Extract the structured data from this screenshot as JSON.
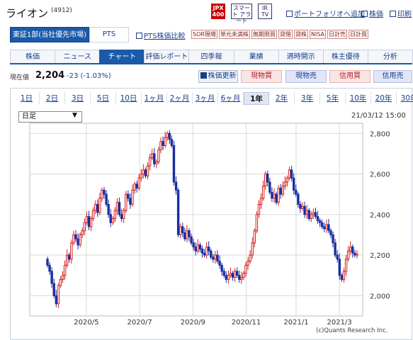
{
  "header": {
    "title": "ライオン",
    "code": "(4912)",
    "icons": {
      "jpx": "JPX 400",
      "smart": "スマート アラート",
      "irtv": "IR TV"
    },
    "links": [
      "ポートフォリオへ追加",
      "株価",
      "印刷"
    ]
  },
  "market": {
    "active": "東証1部(当社優先市場)",
    "pts": "PTS",
    "pts_compare": "PTS株価比較",
    "badges": [
      "SOR現場",
      "単元未満株",
      "無期限買",
      "貸借",
      "貸株",
      "NISA",
      "日計売",
      "日計買"
    ]
  },
  "nav": {
    "tabs": [
      "株価",
      "ニュース",
      "チャート",
      "評価レポート",
      "四季報",
      "業績",
      "適時開示",
      "株主優待",
      "分析"
    ],
    "active_index": 2
  },
  "quote": {
    "label": "現在値",
    "price": "2,204",
    "change": "-23 (-1.03%)",
    "refresh_label": "株価更新",
    "buttons": [
      "現物買",
      "現物売",
      "信用買",
      "信用売"
    ]
  },
  "chart_controls": {
    "periods": [
      "1日",
      "2日",
      "3日",
      "5日",
      "10日",
      "1ヶ月",
      "2ヶ月",
      "3ヶ月",
      "6ヶ月",
      "1年",
      "2年",
      "3年",
      "5年",
      "10年",
      "20年",
      "30年"
    ],
    "active_period": "1年",
    "interval": "日足",
    "datetime": "21/03/12 15:00",
    "credit": "(c)Quants Research Inc."
  },
  "colors": {
    "up": "#d42020",
    "down": "#1a2fa0",
    "accent": "#1a5aa8"
  },
  "chart_data": {
    "type": "candlestick",
    "x_labels": [
      "2020/5",
      "2020/7",
      "2020/9",
      "2020/11",
      "2021/1",
      "2021/3"
    ],
    "y_ticks": [
      "2,800",
      "2,600",
      "2,400",
      "2,200",
      "2,000"
    ],
    "ylim": [
      1900,
      2850
    ],
    "grid": true,
    "closes": [
      2150,
      2120,
      2060,
      2000,
      1960,
      2050,
      2080,
      2100,
      2150,
      2200,
      2180,
      2260,
      2300,
      2280,
      2250,
      2300,
      2320,
      2360,
      2390,
      2340,
      2380,
      2420,
      2450,
      2410,
      2480,
      2520,
      2500,
      2450,
      2400,
      2360,
      2380,
      2420,
      2460,
      2400,
      2380,
      2420,
      2500,
      2480,
      2450,
      2520,
      2550,
      2530,
      2580,
      2600,
      2620,
      2590,
      2640,
      2680,
      2700,
      2650,
      2660,
      2720,
      2760,
      2740,
      2780,
      2800,
      2770,
      2740,
      2560,
      2520,
      2300,
      2340,
      2310,
      2280,
      2320,
      2290,
      2260,
      2240,
      2220,
      2250,
      2230,
      2210,
      2200,
      2240,
      2220,
      2190,
      2180,
      2200,
      2170,
      2150,
      2120,
      2100,
      2080,
      2100,
      2110,
      2090,
      2120,
      2100,
      2080,
      2090,
      2110,
      2150,
      2170,
      2200,
      2260,
      2320,
      2400,
      2450,
      2480,
      2540,
      2600,
      2560,
      2510,
      2480,
      2500,
      2460,
      2530,
      2500,
      2540,
      2560,
      2580,
      2620,
      2580,
      2520,
      2500,
      2450,
      2430,
      2440,
      2400,
      2420,
      2380,
      2400,
      2410,
      2390,
      2370,
      2360,
      2340,
      2330,
      2350,
      2320,
      2300,
      2260,
      2200,
      2180,
      2100,
      2080,
      2120,
      2180,
      2220,
      2240,
      2210,
      2200,
      2204
    ]
  }
}
